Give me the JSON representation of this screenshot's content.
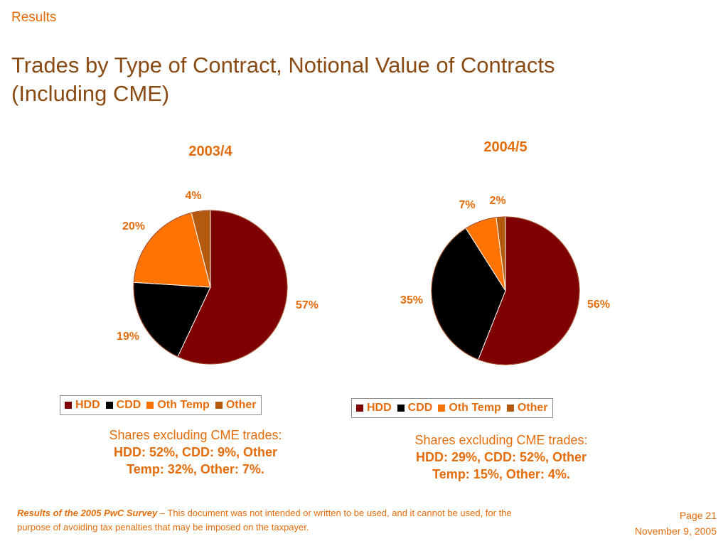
{
  "header": {
    "section": "Results",
    "title_line1": "Trades by Type of Contract, Notional Value of Contracts",
    "title_line2": "(Including CME)"
  },
  "colors": {
    "HDD": "#7F0000",
    "CDD": "#000000",
    "Oth Temp": "#FF7300",
    "Other": "#B35A0E",
    "text_accent": "#E46C0A",
    "title": "#8A4A14"
  },
  "chart_data": [
    {
      "type": "pie",
      "title": "2003/4",
      "categories": [
        "HDD",
        "CDD",
        "Oth Temp",
        "Other"
      ],
      "values": [
        57,
        19,
        20,
        4
      ],
      "labels": [
        "57%",
        "19%",
        "20%",
        "4%"
      ],
      "legend": [
        "HDD",
        "CDD",
        "Oth Temp",
        "Other"
      ],
      "legend_position": "bottom"
    },
    {
      "type": "pie",
      "title": "2004/5",
      "categories": [
        "HDD",
        "CDD",
        "Oth Temp",
        "Other"
      ],
      "values": [
        56,
        35,
        7,
        2
      ],
      "labels": [
        "56%",
        "35%",
        "7%",
        "2%"
      ],
      "legend": [
        "HDD",
        "CDD",
        "Oth Temp",
        "Other"
      ],
      "legend_position": "bottom"
    }
  ],
  "notes": [
    {
      "line1": "Shares excluding CME trades:",
      "line2": "HDD:  52%, CDD:  9%, Other",
      "line3": "Temp:  32%, Other:  7%."
    },
    {
      "line1": "Shares excluding CME trades:",
      "line2": "HDD:  29%, CDD:  52%, Other",
      "line3": "Temp:  15%, Other:  4%."
    }
  ],
  "footer": {
    "survey": "Results of the 2005 PwC Survey",
    "disclaimer": " – This document was not intended or written to be used, and it cannot be used, for the purpose of avoiding tax penalties that may be imposed on the taxpayer.",
    "page": "Page 21",
    "date": "November 9, 2005"
  }
}
